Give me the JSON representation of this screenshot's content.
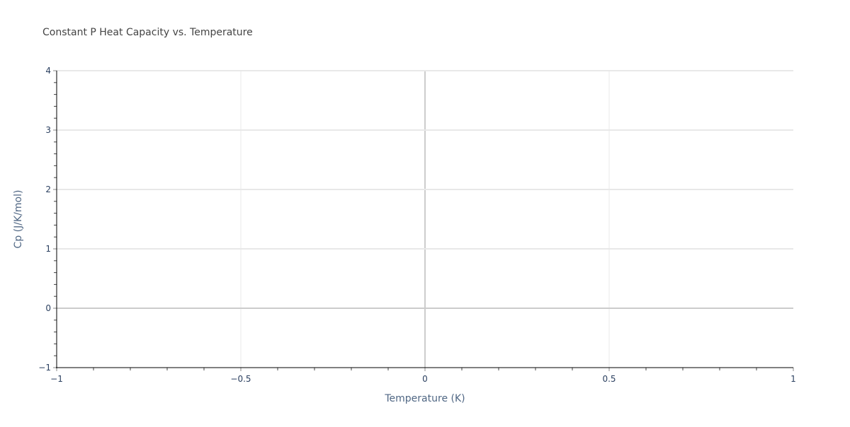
{
  "chart_data": {
    "type": "line",
    "title": "Constant P Heat Capacity vs. Temperature",
    "xlabel": "Temperature (K)",
    "ylabel": "Cp (J/K/mol)",
    "xlim": [
      -1,
      1
    ],
    "ylim": [
      -1,
      4
    ],
    "xticks": [
      -1,
      -0.5,
      0,
      0.5,
      1
    ],
    "xtick_labels": [
      "−1",
      "−0.5",
      "0",
      "0.5",
      "1"
    ],
    "yticks": [
      -1,
      0,
      1,
      2,
      3,
      4
    ],
    "ytick_labels": [
      "−1",
      "0",
      "1",
      "2",
      "3",
      "4"
    ],
    "x_minor_step": 0.1,
    "y_minor_step": 0.2,
    "grid": true,
    "series": [],
    "colors": {
      "grid": "#e8e8e8",
      "zeroline": "#cccccc",
      "axis": "#000000",
      "text": "#2a3f5f"
    }
  }
}
